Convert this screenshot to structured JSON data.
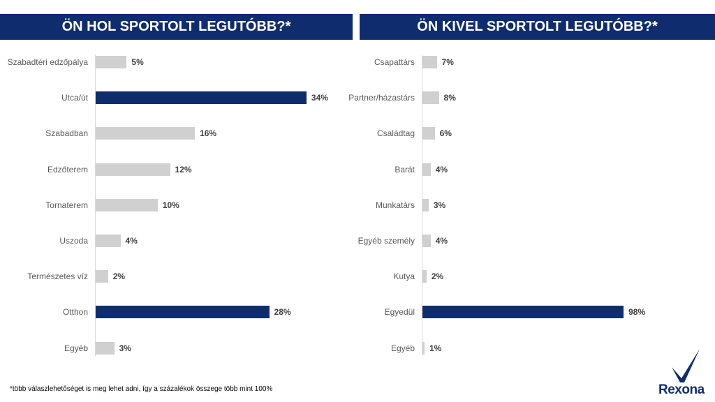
{
  "chart_data": [
    {
      "type": "bar",
      "orientation": "horizontal",
      "title": "ÖN HOL SPORTOLT LEGUTÓBB?*",
      "categories": [
        "Szabadtéri edzőpálya",
        "Utca/út",
        "Szabadban",
        "Edzőterem",
        "Tornaterem",
        "Uszoda",
        "Természetes víz",
        "Otthon",
        "Egyéb"
      ],
      "values": [
        5,
        34,
        16,
        12,
        10,
        4,
        2,
        28,
        3
      ],
      "labels": [
        "5%",
        "34%",
        "16%",
        "12%",
        "10%",
        "4%",
        "2%",
        "28%",
        "3%"
      ],
      "highlight": [
        false,
        true,
        false,
        false,
        false,
        false,
        false,
        true,
        false
      ],
      "unit": "%",
      "xlim": [
        0,
        40
      ]
    },
    {
      "type": "bar",
      "orientation": "horizontal",
      "title": "ÖN KIVEL SPORTOLT LEGUTÓBB?*",
      "categories": [
        "Csapattárs",
        "Partner/házastárs",
        "Családtag",
        "Barát",
        "Munkatárs",
        "Egyéb személy",
        "Kutya",
        "Egyedül",
        "Egyéb"
      ],
      "values": [
        7,
        8,
        6,
        4,
        3,
        4,
        2,
        98,
        1
      ],
      "labels": [
        "7%",
        "8%",
        "6%",
        "4%",
        "3%",
        "4%",
        "2%",
        "98%",
        "1%"
      ],
      "highlight": [
        false,
        false,
        false,
        false,
        false,
        false,
        false,
        true,
        false
      ],
      "unit": "%",
      "xlim": [
        0,
        100
      ]
    }
  ],
  "footnote": "*több válaszlehetőséget is meg lehet adni, így a százalékok összege több mint 100%",
  "logo": "Rexona",
  "colors": {
    "highlight": "#0f2d6e",
    "default": "#d0d0d0",
    "band": "#0f2d6e"
  }
}
